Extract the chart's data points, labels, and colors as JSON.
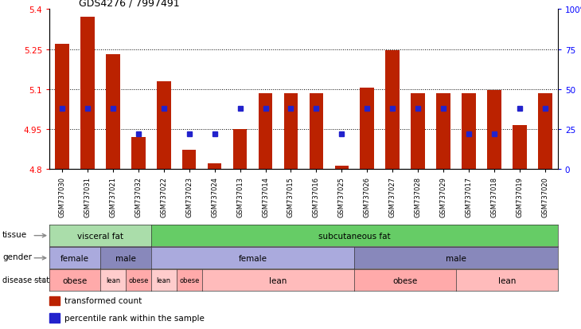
{
  "title": "GDS4276 / 7997491",
  "samples": [
    "GSM737030",
    "GSM737031",
    "GSM737021",
    "GSM737032",
    "GSM737022",
    "GSM737023",
    "GSM737024",
    "GSM737013",
    "GSM737014",
    "GSM737015",
    "GSM737016",
    "GSM737025",
    "GSM737026",
    "GSM737027",
    "GSM737028",
    "GSM737029",
    "GSM737017",
    "GSM737018",
    "GSM737019",
    "GSM737020"
  ],
  "bar_values": [
    5.27,
    5.37,
    5.23,
    4.92,
    5.13,
    4.87,
    4.82,
    4.95,
    5.085,
    5.085,
    5.085,
    4.81,
    5.105,
    5.245,
    5.085,
    5.085,
    5.085,
    5.095,
    4.965,
    5.085
  ],
  "percentile_values": [
    0.38,
    0.38,
    0.38,
    0.22,
    0.38,
    0.22,
    0.22,
    0.38,
    0.38,
    0.38,
    0.38,
    0.22,
    0.38,
    0.38,
    0.38,
    0.38,
    0.22,
    0.22,
    0.38,
    0.38
  ],
  "bar_color": "#bb2200",
  "percentile_color": "#2222cc",
  "ymin": 4.8,
  "ymax": 5.4,
  "yticks": [
    4.8,
    4.95,
    5.1,
    5.25,
    5.4
  ],
  "ytick_labels": [
    "4.8",
    "4.95",
    "5.1",
    "5.25",
    "5.4"
  ],
  "right_yticks": [
    0.0,
    0.25,
    0.5,
    0.75,
    1.0
  ],
  "right_ytick_labels": [
    "0",
    "25",
    "50",
    "75",
    "100%"
  ],
  "grid_values": [
    4.95,
    5.1,
    5.25
  ],
  "tissue_groups": [
    {
      "label": "visceral fat",
      "start": 0,
      "end": 4,
      "color": "#aaddaa"
    },
    {
      "label": "subcutaneous fat",
      "start": 4,
      "end": 20,
      "color": "#66cc66"
    }
  ],
  "gender_groups": [
    {
      "label": "female",
      "start": 0,
      "end": 2,
      "color": "#aaaadd"
    },
    {
      "label": "male",
      "start": 2,
      "end": 4,
      "color": "#8888bb"
    },
    {
      "label": "female",
      "start": 4,
      "end": 12,
      "color": "#aaaadd"
    },
    {
      "label": "male",
      "start": 12,
      "end": 20,
      "color": "#8888bb"
    }
  ],
  "disease_groups": [
    {
      "label": "obese",
      "start": 0,
      "end": 2,
      "color": "#ffaaaa"
    },
    {
      "label": "lean",
      "start": 2,
      "end": 3,
      "color": "#ffcccc"
    },
    {
      "label": "obese",
      "start": 3,
      "end": 4,
      "color": "#ffaaaa"
    },
    {
      "label": "lean",
      "start": 4,
      "end": 5,
      "color": "#ffcccc"
    },
    {
      "label": "obese",
      "start": 5,
      "end": 6,
      "color": "#ffaaaa"
    },
    {
      "label": "lean",
      "start": 6,
      "end": 12,
      "color": "#ffbbbb"
    },
    {
      "label": "obese",
      "start": 12,
      "end": 16,
      "color": "#ffaaaa"
    },
    {
      "label": "lean",
      "start": 16,
      "end": 20,
      "color": "#ffbbbb"
    }
  ],
  "legend_items": [
    {
      "label": "transformed count",
      "color": "#bb2200"
    },
    {
      "label": "percentile rank within the sample",
      "color": "#2222cc"
    }
  ]
}
